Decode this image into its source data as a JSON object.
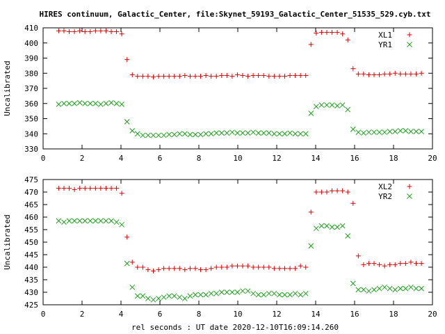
{
  "figure": {
    "title": "HIRES continuum, Galactic_Center, file:Skynet_59193_Galactic_Center_51535_529.cyb.txt",
    "xlabel": "rel seconds : UT date 2020-12-10T16:09:14.260"
  },
  "colors": {
    "series1": "#dd0000",
    "series2": "#1aa01a",
    "axis": "#000000"
  },
  "chart_data": [
    {
      "type": "scatter",
      "ylabel": "Uncalibrated",
      "xlim": [
        0,
        20
      ],
      "ylim": [
        330,
        410
      ],
      "xticks": [
        "0",
        "2",
        "4",
        "6",
        "8",
        "10",
        "12",
        "14",
        "16",
        "18",
        "20"
      ],
      "yticks": [
        "330",
        "340",
        "350",
        "360",
        "370",
        "380",
        "390",
        "400",
        "410"
      ],
      "legend_position": "top-right",
      "grid": false,
      "series": [
        {
          "name": "XL1",
          "marker": "plus",
          "color": "#dd0000",
          "x": [
            0.8,
            1.07,
            1.34,
            1.61,
            1.88,
            2.15,
            2.42,
            2.69,
            2.96,
            3.23,
            3.5,
            3.77,
            4.04,
            4.31,
            4.58,
            4.85,
            5.12,
            5.39,
            5.66,
            5.93,
            6.2,
            6.47,
            6.74,
            7.01,
            7.28,
            7.55,
            7.82,
            8.09,
            8.36,
            8.63,
            8.9,
            9.17,
            9.44,
            9.71,
            9.98,
            10.25,
            10.52,
            10.79,
            11.06,
            11.33,
            11.6,
            11.87,
            12.14,
            12.41,
            12.68,
            12.95,
            13.22,
            13.49,
            13.76,
            14.03,
            14.3,
            14.57,
            14.84,
            15.11,
            15.38,
            15.65,
            15.92,
            16.19,
            16.46,
            16.73,
            17.0,
            17.27,
            17.54,
            17.81,
            18.08,
            18.35,
            18.62,
            18.89,
            19.16,
            19.43
          ],
          "y": [
            408,
            408,
            407.5,
            407.5,
            408,
            407.5,
            407.5,
            408,
            408,
            408,
            407.5,
            407.5,
            406,
            389,
            379,
            378,
            378,
            378,
            377.5,
            378,
            378,
            378,
            378,
            378,
            378.5,
            378,
            378,
            378,
            378.5,
            378,
            378,
            378.5,
            378.5,
            378,
            379,
            378.5,
            378,
            378.5,
            378.5,
            378.5,
            378,
            378,
            378,
            378,
            378.5,
            378.5,
            378.5,
            378.5,
            399,
            406.5,
            407,
            407,
            407,
            407,
            406,
            402,
            383,
            379.5,
            379.5,
            379,
            379,
            379,
            379.5,
            379.5,
            380,
            379.5,
            379.5,
            379.5,
            379.5,
            380
          ]
        },
        {
          "name": "YR1",
          "marker": "x",
          "color": "#1aa01a",
          "x": [
            0.8,
            1.07,
            1.34,
            1.61,
            1.88,
            2.15,
            2.42,
            2.69,
            2.96,
            3.23,
            3.5,
            3.77,
            4.04,
            4.31,
            4.58,
            4.85,
            5.12,
            5.39,
            5.66,
            5.93,
            6.2,
            6.47,
            6.74,
            7.01,
            7.28,
            7.55,
            7.82,
            8.09,
            8.36,
            8.63,
            8.9,
            9.17,
            9.44,
            9.71,
            9.98,
            10.25,
            10.52,
            10.79,
            11.06,
            11.33,
            11.6,
            11.87,
            12.14,
            12.41,
            12.68,
            12.95,
            13.22,
            13.49,
            13.76,
            14.03,
            14.3,
            14.57,
            14.84,
            15.11,
            15.38,
            15.65,
            15.92,
            16.19,
            16.46,
            16.73,
            17.0,
            17.27,
            17.54,
            17.81,
            18.08,
            18.35,
            18.62,
            18.89,
            19.16,
            19.43
          ],
          "y": [
            359.5,
            360,
            360,
            360,
            360.5,
            360,
            360,
            360,
            359.5,
            360,
            360.5,
            360,
            359.5,
            348,
            342,
            340,
            339,
            339,
            339,
            339,
            339,
            339.5,
            339.5,
            340,
            340,
            339.5,
            339.5,
            339.5,
            340,
            340,
            340.5,
            340.5,
            340.5,
            341,
            340.5,
            340.5,
            340.5,
            341,
            340.5,
            340.5,
            340.5,
            340,
            340,
            340,
            340.5,
            340,
            340,
            340,
            353.5,
            358,
            359,
            359,
            359,
            358.5,
            359,
            356,
            343,
            341,
            340.5,
            341,
            341,
            341,
            341,
            341.5,
            341.5,
            342,
            342,
            341.5,
            341.5,
            341.5
          ]
        }
      ]
    },
    {
      "type": "scatter",
      "ylabel": "Uncalibrated",
      "xlim": [
        0,
        20
      ],
      "ylim": [
        425,
        475
      ],
      "xticks": [
        "0",
        "2",
        "4",
        "6",
        "8",
        "10",
        "12",
        "14",
        "16",
        "18",
        "20"
      ],
      "yticks": [
        "425",
        "430",
        "435",
        "440",
        "445",
        "450",
        "455",
        "460",
        "465",
        "470",
        "475"
      ],
      "legend_position": "top-right",
      "grid": false,
      "series": [
        {
          "name": "XL2",
          "marker": "plus",
          "color": "#dd0000",
          "x": [
            0.8,
            1.07,
            1.34,
            1.61,
            1.88,
            2.15,
            2.42,
            2.69,
            2.96,
            3.23,
            3.5,
            3.77,
            4.04,
            4.31,
            4.58,
            4.85,
            5.12,
            5.39,
            5.66,
            5.93,
            6.2,
            6.47,
            6.74,
            7.01,
            7.28,
            7.55,
            7.82,
            8.09,
            8.36,
            8.63,
            8.9,
            9.17,
            9.44,
            9.71,
            9.98,
            10.25,
            10.52,
            10.79,
            11.06,
            11.33,
            11.6,
            11.87,
            12.14,
            12.41,
            12.68,
            12.95,
            13.22,
            13.49,
            13.76,
            14.03,
            14.3,
            14.57,
            14.84,
            15.11,
            15.38,
            15.65,
            15.92,
            16.19,
            16.46,
            16.73,
            17.0,
            17.27,
            17.54,
            17.81,
            18.08,
            18.35,
            18.62,
            18.89,
            19.16,
            19.43
          ],
          "y": [
            471.5,
            471.5,
            471.5,
            471,
            471.5,
            471.5,
            471.5,
            471.5,
            471.5,
            471.5,
            471.5,
            471.5,
            469.5,
            452,
            442,
            440,
            440,
            439,
            438.5,
            439,
            439.5,
            439.5,
            439.5,
            439.5,
            439,
            439.5,
            439.5,
            439,
            439,
            439.5,
            440,
            440,
            440,
            440.5,
            440.5,
            440.5,
            440.5,
            440,
            440,
            440,
            440,
            439.5,
            439.5,
            439.5,
            439.5,
            439.5,
            440.5,
            440,
            462,
            470,
            470,
            470,
            470.5,
            470.5,
            470.5,
            470,
            465.5,
            444.5,
            441,
            441.5,
            441.5,
            441,
            440.5,
            441,
            441,
            441.5,
            441.5,
            442,
            441.5,
            441.5
          ]
        },
        {
          "name": "YR2",
          "marker": "x",
          "color": "#1aa01a",
          "x": [
            0.8,
            1.07,
            1.34,
            1.61,
            1.88,
            2.15,
            2.42,
            2.69,
            2.96,
            3.23,
            3.5,
            3.77,
            4.04,
            4.31,
            4.58,
            4.85,
            5.12,
            5.39,
            5.66,
            5.93,
            6.2,
            6.47,
            6.74,
            7.01,
            7.28,
            7.55,
            7.82,
            8.09,
            8.36,
            8.63,
            8.9,
            9.17,
            9.44,
            9.71,
            9.98,
            10.25,
            10.52,
            10.79,
            11.06,
            11.33,
            11.6,
            11.87,
            12.14,
            12.41,
            12.68,
            12.95,
            13.22,
            13.49,
            13.76,
            14.03,
            14.3,
            14.57,
            14.84,
            15.11,
            15.38,
            15.65,
            15.92,
            16.19,
            16.46,
            16.73,
            17.0,
            17.27,
            17.54,
            17.81,
            18.08,
            18.35,
            18.62,
            18.89,
            19.16,
            19.43
          ],
          "y": [
            458.5,
            458,
            458.5,
            458.5,
            458.5,
            458.5,
            458.5,
            458.5,
            458.5,
            458.5,
            458.5,
            458,
            457,
            441.5,
            432,
            428.5,
            428.5,
            427.5,
            427,
            427.5,
            428,
            428.5,
            428.5,
            428,
            427.5,
            428.5,
            429,
            429,
            429,
            429.5,
            429.5,
            430,
            430,
            430,
            430,
            430.5,
            430.5,
            429.5,
            429,
            429,
            429.5,
            429.5,
            429,
            429,
            429,
            429.5,
            429,
            429.5,
            448.5,
            455.5,
            456.5,
            456.5,
            456,
            456,
            456.5,
            452.5,
            433.5,
            431,
            431,
            430.5,
            431,
            431.5,
            432,
            431.5,
            431,
            431.5,
            431.5,
            432,
            431.5,
            431.5
          ]
        }
      ]
    }
  ]
}
